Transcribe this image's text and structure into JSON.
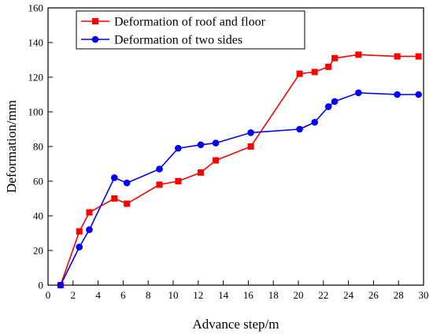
{
  "chart_data": {
    "type": "line",
    "xlabel": "Advance step/m",
    "ylabel": "Deformation/mm",
    "xlim": [
      0,
      30
    ],
    "ylim": [
      0,
      160
    ],
    "xticks": [
      0,
      2,
      4,
      6,
      8,
      10,
      12,
      14,
      16,
      18,
      20,
      22,
      24,
      26,
      28,
      30
    ],
    "yticks": [
      0,
      20,
      40,
      60,
      80,
      100,
      120,
      140,
      160
    ],
    "grid": false,
    "legend_position": "top-left",
    "series": [
      {
        "name": "Deformation of roof and floor",
        "color": "#ff0000",
        "marker": "square",
        "points": [
          [
            1.0,
            0
          ],
          [
            2.5,
            31
          ],
          [
            3.3,
            42
          ],
          [
            5.3,
            50
          ],
          [
            6.3,
            47
          ],
          [
            8.9,
            58
          ],
          [
            10.4,
            60
          ],
          [
            12.2,
            65
          ],
          [
            13.4,
            72
          ],
          [
            16.2,
            80
          ],
          [
            20.1,
            122
          ],
          [
            21.3,
            123
          ],
          [
            22.4,
            126
          ],
          [
            22.9,
            131
          ],
          [
            24.8,
            133
          ],
          [
            27.9,
            132
          ],
          [
            29.6,
            132
          ]
        ]
      },
      {
        "name": "Deformation of two sides",
        "color": "#0000ff",
        "marker": "circle",
        "points": [
          [
            1.0,
            0
          ],
          [
            2.5,
            22
          ],
          [
            3.3,
            32
          ],
          [
            5.3,
            62
          ],
          [
            6.3,
            59
          ],
          [
            8.9,
            67
          ],
          [
            10.4,
            79
          ],
          [
            12.2,
            81
          ],
          [
            13.4,
            82
          ],
          [
            16.2,
            88
          ],
          [
            20.1,
            90
          ],
          [
            21.3,
            94
          ],
          [
            22.4,
            103
          ],
          [
            22.9,
            106
          ],
          [
            24.8,
            111
          ],
          [
            27.9,
            110
          ],
          [
            29.6,
            110
          ]
        ]
      }
    ]
  }
}
